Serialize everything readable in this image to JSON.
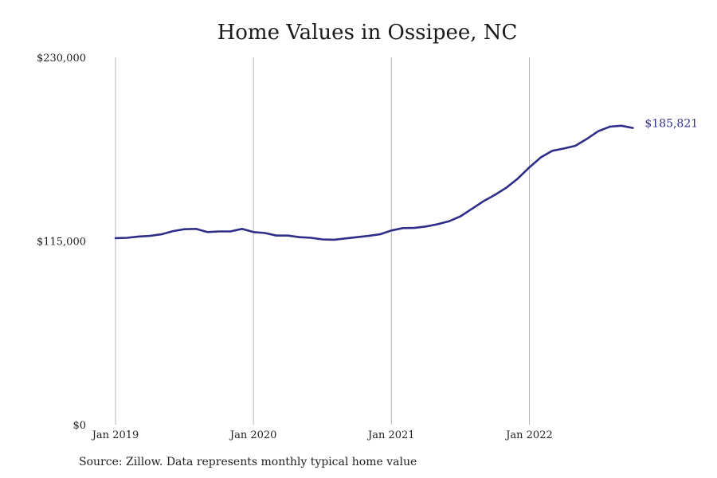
{
  "chart_data": {
    "type": "line",
    "title": "Home Values in Ossipee, NC",
    "xlabel": "",
    "ylabel": "",
    "ylim": [
      0,
      230000
    ],
    "y_ticks": [
      0,
      115000,
      230000
    ],
    "y_tick_labels": [
      "$0",
      "$115,000",
      "$230,000"
    ],
    "x_ticks": [
      "2019-01",
      "2020-01",
      "2021-01",
      "2022-01"
    ],
    "x_tick_labels": [
      "Jan 2019",
      "Jan 2020",
      "Jan 2021",
      "Jan 2022"
    ],
    "grid": "vertical lines at x ticks",
    "line_color": "#2e2e8a",
    "end_label": "$185,821",
    "series": [
      {
        "x": [
          "2019-01",
          "2019-02",
          "2019-03",
          "2019-04",
          "2019-05",
          "2019-06",
          "2019-07",
          "2019-08",
          "2019-09",
          "2019-10",
          "2019-11",
          "2019-12",
          "2020-01",
          "2020-02",
          "2020-03",
          "2020-04",
          "2020-05",
          "2020-06",
          "2020-07",
          "2020-08",
          "2020-09",
          "2020-10",
          "2020-11",
          "2020-12",
          "2021-01",
          "2021-02",
          "2021-03",
          "2021-04",
          "2021-05",
          "2021-06",
          "2021-07",
          "2021-08",
          "2021-09",
          "2021-10",
          "2021-11",
          "2021-12",
          "2022-01",
          "2022-02",
          "2022-03",
          "2022-04",
          "2022-05",
          "2022-06",
          "2022-07",
          "2022-08",
          "2022-09",
          "2022-10"
        ],
        "values": [
          116800,
          117000,
          117800,
          118200,
          119200,
          121200,
          122400,
          122600,
          120600,
          121000,
          121000,
          122600,
          120600,
          120000,
          118400,
          118400,
          117400,
          117000,
          116000,
          115800,
          116600,
          117400,
          118200,
          119200,
          121600,
          123100,
          123200,
          124100,
          125500,
          127300,
          130400,
          135100,
          139900,
          143900,
          148400,
          154100,
          161100,
          167400,
          171500,
          172900,
          174600,
          178900,
          183800,
          186600,
          187200,
          185821
        ]
      }
    ]
  },
  "source_note": "Source: Zillow. Data represents monthly typical home value"
}
